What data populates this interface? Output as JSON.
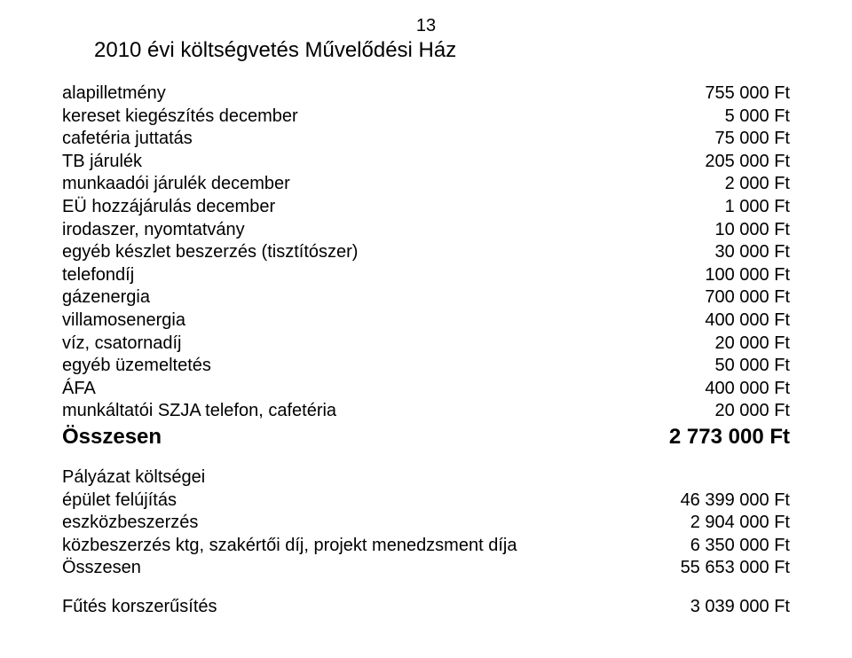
{
  "page_number": "13",
  "title": "2010 évi költségvetés Művelődési Ház",
  "main_rows": [
    {
      "label": "alapilletmény",
      "value": "755 000 Ft"
    },
    {
      "label": "kereset kiegészítés december",
      "value": "5 000 Ft"
    },
    {
      "label": "cafetéria juttatás",
      "value": "75 000 Ft"
    },
    {
      "label": "TB járulék",
      "value": "205 000 Ft"
    },
    {
      "label": "munkaadói járulék december",
      "value": "2 000 Ft"
    },
    {
      "label": "EÜ hozzájárulás december",
      "value": "1 000 Ft"
    },
    {
      "label": "irodaszer, nyomtatvány",
      "value": "10 000 Ft"
    },
    {
      "label": "egyéb készlet beszerzés (tisztítószer)",
      "value": "30 000 Ft"
    },
    {
      "label": "telefondíj",
      "value": "100 000 Ft"
    },
    {
      "label": "gázenergia",
      "value": "700 000 Ft"
    },
    {
      "label": "villamosenergia",
      "value": "400 000 Ft"
    },
    {
      "label": "víz, csatornadíj",
      "value": "20 000 Ft"
    },
    {
      "label": "egyéb üzemeltetés",
      "value": "50 000 Ft"
    },
    {
      "label": "ÁFA",
      "value": "400 000 Ft"
    },
    {
      "label": "munkáltatói SZJA telefon, cafetéria",
      "value": "20 000 Ft"
    }
  ],
  "main_total": {
    "label": "Összesen",
    "value": "2 773 000 Ft"
  },
  "palyazat_heading": "Pályázat költségei",
  "palyazat_rows": [
    {
      "label": "épület felújítás",
      "value": "46 399 000 Ft"
    },
    {
      "label": "eszközbeszerzés",
      "value": "2 904 000 Ft"
    },
    {
      "label": "közbeszerzés ktg, szakértői díj, projekt menedzsment díja",
      "value": "6 350 000 Ft"
    },
    {
      "label": "Összesen",
      "value": "55 653 000 Ft"
    }
  ],
  "futes_rows": [
    {
      "label": "Fűtés korszerűsítés",
      "value": "3 039 000 Ft"
    }
  ],
  "colors": {
    "text": "#000000",
    "background": "#ffffff"
  },
  "font": {
    "family": "Arial",
    "body_size_pt": 15,
    "title_size_pt": 18,
    "total_size_pt": 18
  }
}
